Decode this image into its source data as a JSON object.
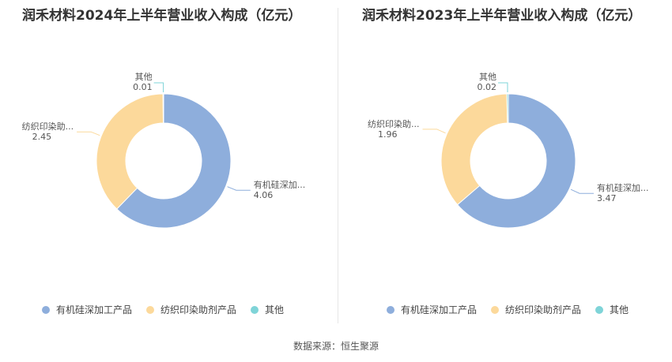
{
  "source_label": "数据来源：恒生聚源",
  "chart_data": [
    {
      "type": "pie",
      "title": "润禾材料2024年上半年营业收入构成（亿元）",
      "categories": [
        "有机硅深加工产品",
        "纺织印染助剂产品",
        "其他"
      ],
      "slice_labels": [
        "有机硅深加...",
        "纺织印染助...",
        "其他"
      ],
      "values": [
        4.06,
        2.45,
        0.01
      ],
      "value_labels": [
        "4.06",
        "2.45",
        "0.01"
      ],
      "colors": [
        "#8eaedc",
        "#fcd99b",
        "#7fd4d8"
      ],
      "legend": "bottom"
    },
    {
      "type": "pie",
      "title": "润禾材料2023年上半年营业收入构成（亿元）",
      "categories": [
        "有机硅深加工产品",
        "纺织印染助剂产品",
        "其他"
      ],
      "slice_labels": [
        "有机硅深加...",
        "纺织印染助...",
        "其他"
      ],
      "values": [
        3.47,
        1.96,
        0.02
      ],
      "value_labels": [
        "3.47",
        "1.96",
        "0.02"
      ],
      "colors": [
        "#8eaedc",
        "#fcd99b",
        "#7fd4d8"
      ],
      "legend": "bottom"
    }
  ]
}
